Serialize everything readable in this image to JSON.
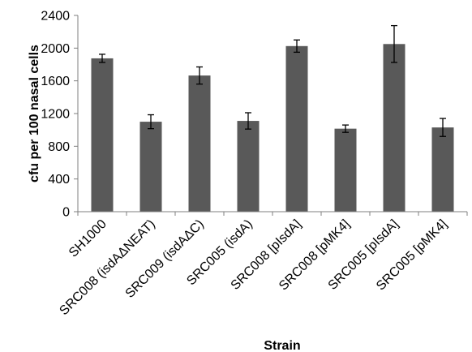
{
  "chart_data": {
    "type": "bar",
    "title": "",
    "xlabel": "Strain",
    "ylabel": "cfu per 100 nasal cells",
    "ylim": [
      0,
      2400
    ],
    "yticks": [
      0,
      400,
      800,
      1200,
      1600,
      2000,
      2400
    ],
    "grid": false,
    "legend": "none",
    "bar_color": "#595959",
    "categories": [
      "SH1000",
      "SRC008 (isdAΔNEAT)",
      "SRC009 (isdAΔC)",
      "SRC005 (isdA)",
      "SRC008 [pIsdA]",
      "SRC008 [pMK4]",
      "SRC005 [pIsdA]",
      "SRC005 [pMK4]"
    ],
    "values": [
      1875,
      1100,
      1665,
      1110,
      2025,
      1015,
      2050,
      1030
    ],
    "errors": [
      50,
      85,
      105,
      100,
      75,
      45,
      225,
      110
    ]
  }
}
